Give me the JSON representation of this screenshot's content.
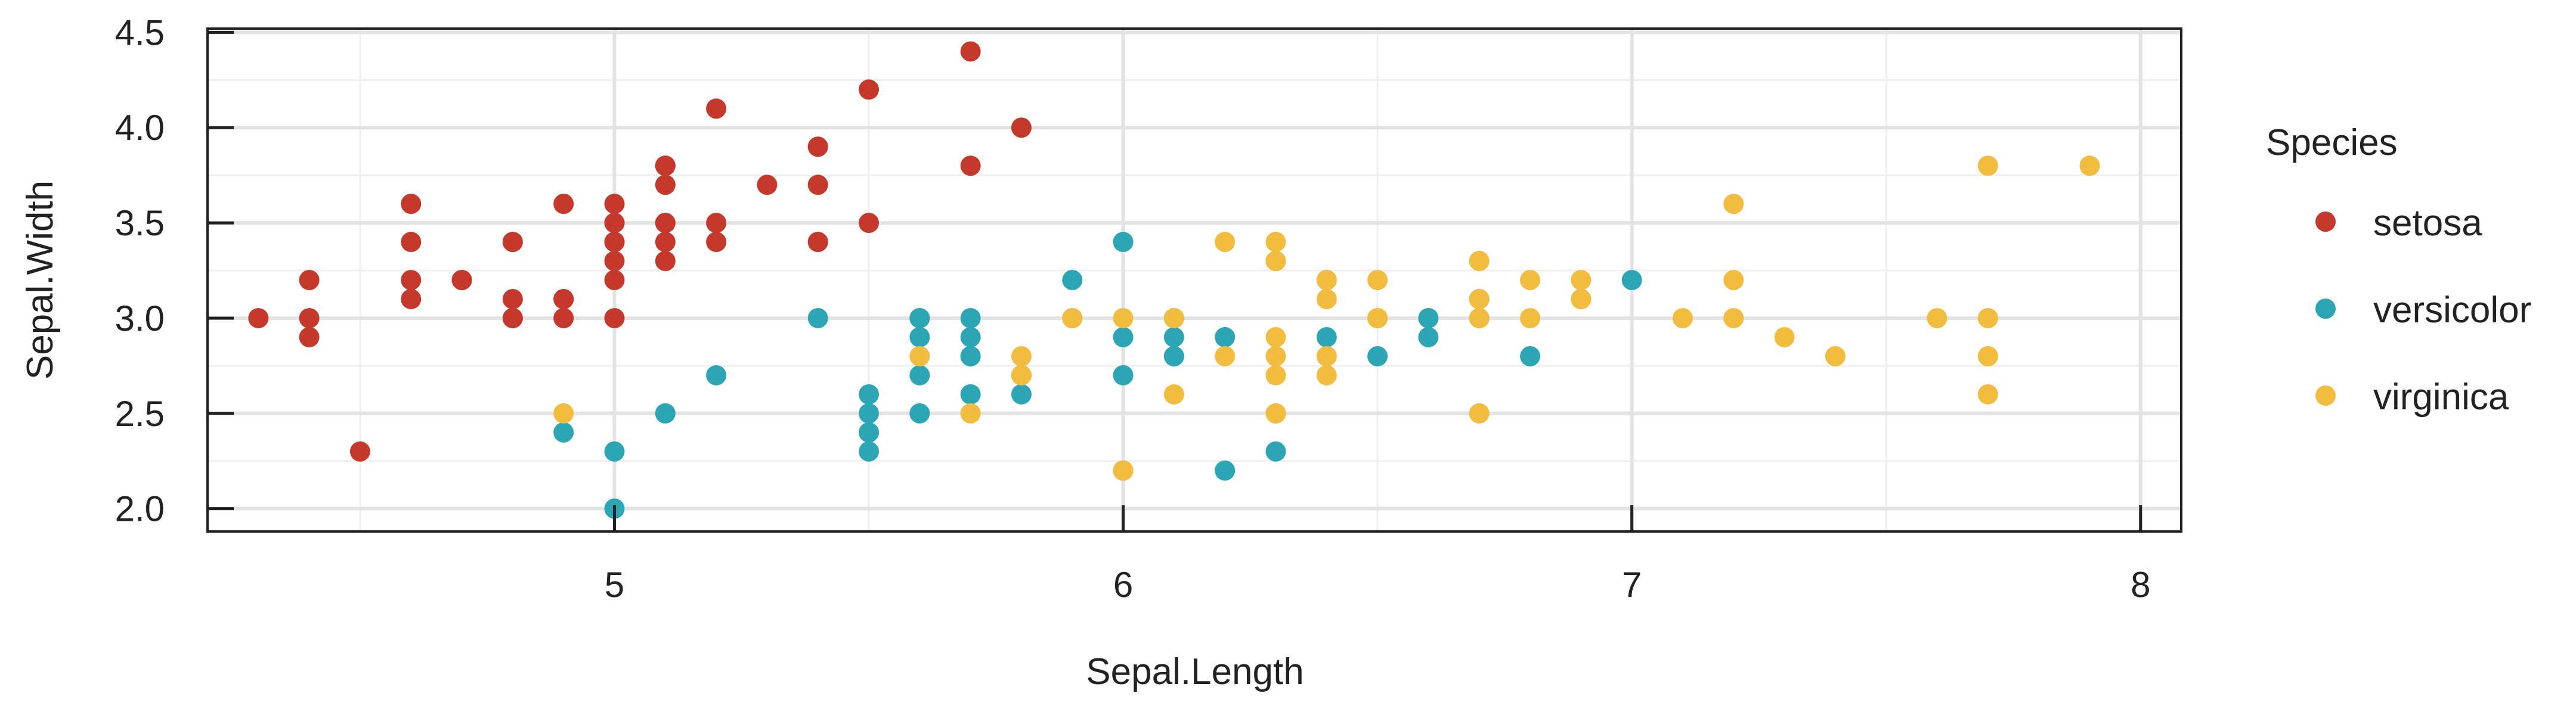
{
  "chart_data": {
    "type": "scatter",
    "xlabel": "Sepal.Length",
    "ylabel": "Sepal.Width",
    "xlim": [
      4.2,
      8.08
    ],
    "ylim": [
      1.88,
      4.52
    ],
    "x_ticks": [
      5,
      6,
      7,
      8
    ],
    "y_ticks": [
      "2.0",
      "2.5",
      "3.0",
      "3.5",
      "4.0",
      "4.5"
    ],
    "grid": true,
    "legend": {
      "title": "Species",
      "position": "right"
    },
    "series": [
      {
        "name": "setosa",
        "color": "#C4392B",
        "points": [
          [
            5.1,
            3.5
          ],
          [
            4.9,
            3.0
          ],
          [
            4.7,
            3.2
          ],
          [
            4.6,
            3.1
          ],
          [
            5.0,
            3.6
          ],
          [
            5.4,
            3.9
          ],
          [
            4.6,
            3.4
          ],
          [
            5.0,
            3.4
          ],
          [
            4.4,
            2.9
          ],
          [
            4.9,
            3.1
          ],
          [
            5.4,
            3.7
          ],
          [
            4.8,
            3.4
          ],
          [
            4.8,
            3.0
          ],
          [
            4.3,
            3.0
          ],
          [
            5.8,
            4.0
          ],
          [
            5.7,
            4.4
          ],
          [
            5.4,
            3.9
          ],
          [
            5.1,
            3.5
          ],
          [
            5.7,
            3.8
          ],
          [
            5.1,
            3.8
          ],
          [
            5.4,
            3.4
          ],
          [
            5.1,
            3.7
          ],
          [
            4.6,
            3.6
          ],
          [
            5.1,
            3.3
          ],
          [
            4.8,
            3.4
          ],
          [
            5.0,
            3.0
          ],
          [
            5.0,
            3.4
          ],
          [
            5.2,
            3.5
          ],
          [
            5.2,
            3.4
          ],
          [
            4.7,
            3.2
          ],
          [
            4.8,
            3.1
          ],
          [
            5.4,
            3.4
          ],
          [
            5.2,
            4.1
          ],
          [
            5.5,
            4.2
          ],
          [
            4.9,
            3.1
          ],
          [
            5.0,
            3.2
          ],
          [
            5.5,
            3.5
          ],
          [
            4.9,
            3.6
          ],
          [
            4.4,
            3.0
          ],
          [
            5.1,
            3.4
          ],
          [
            5.0,
            3.5
          ],
          [
            4.5,
            2.3
          ],
          [
            4.4,
            3.2
          ],
          [
            5.0,
            3.5
          ],
          [
            5.1,
            3.8
          ],
          [
            4.8,
            3.0
          ],
          [
            5.1,
            3.8
          ],
          [
            4.6,
            3.2
          ],
          [
            5.3,
            3.7
          ],
          [
            5.0,
            3.3
          ]
        ]
      },
      {
        "name": "versicolor",
        "color": "#2CA6B5",
        "points": [
          [
            7.0,
            3.2
          ],
          [
            6.4,
            3.2
          ],
          [
            6.9,
            3.1
          ],
          [
            5.5,
            2.3
          ],
          [
            6.5,
            2.8
          ],
          [
            5.7,
            2.8
          ],
          [
            6.3,
            3.3
          ],
          [
            4.9,
            2.4
          ],
          [
            6.6,
            2.9
          ],
          [
            5.2,
            2.7
          ],
          [
            5.0,
            2.0
          ],
          [
            5.9,
            3.0
          ],
          [
            6.0,
            2.2
          ],
          [
            6.1,
            2.9
          ],
          [
            5.6,
            2.9
          ],
          [
            6.7,
            3.1
          ],
          [
            5.6,
            3.0
          ],
          [
            5.8,
            2.7
          ],
          [
            6.2,
            2.2
          ],
          [
            5.6,
            2.5
          ],
          [
            5.9,
            3.2
          ],
          [
            6.1,
            2.8
          ],
          [
            6.3,
            2.5
          ],
          [
            6.1,
            2.8
          ],
          [
            6.4,
            2.9
          ],
          [
            6.6,
            3.0
          ],
          [
            6.8,
            2.8
          ],
          [
            6.7,
            3.0
          ],
          [
            6.0,
            2.9
          ],
          [
            5.7,
            2.6
          ],
          [
            5.5,
            2.4
          ],
          [
            5.5,
            2.4
          ],
          [
            5.8,
            2.7
          ],
          [
            6.0,
            2.7
          ],
          [
            5.4,
            3.0
          ],
          [
            6.0,
            3.4
          ],
          [
            6.7,
            3.1
          ],
          [
            6.3,
            2.3
          ],
          [
            5.6,
            3.0
          ],
          [
            5.5,
            2.5
          ],
          [
            5.5,
            2.6
          ],
          [
            6.1,
            3.0
          ],
          [
            5.8,
            2.6
          ],
          [
            5.0,
            2.3
          ],
          [
            5.6,
            2.7
          ],
          [
            5.7,
            3.0
          ],
          [
            5.7,
            2.9
          ],
          [
            6.2,
            2.9
          ],
          [
            5.1,
            2.5
          ],
          [
            5.7,
            2.8
          ]
        ]
      },
      {
        "name": "virginica",
        "color": "#F2BC3F",
        "points": [
          [
            6.3,
            3.3
          ],
          [
            5.8,
            2.7
          ],
          [
            7.1,
            3.0
          ],
          [
            6.3,
            2.9
          ],
          [
            6.5,
            3.0
          ],
          [
            7.6,
            3.0
          ],
          [
            4.9,
            2.5
          ],
          [
            7.3,
            2.9
          ],
          [
            6.7,
            2.5
          ],
          [
            7.2,
            3.6
          ],
          [
            6.5,
            3.2
          ],
          [
            6.4,
            2.7
          ],
          [
            6.8,
            3.0
          ],
          [
            5.7,
            2.5
          ],
          [
            5.8,
            2.8
          ],
          [
            6.4,
            3.2
          ],
          [
            6.5,
            3.0
          ],
          [
            7.7,
            3.8
          ],
          [
            7.7,
            2.6
          ],
          [
            6.0,
            2.2
          ],
          [
            6.9,
            3.2
          ],
          [
            5.6,
            2.8
          ],
          [
            7.7,
            2.8
          ],
          [
            6.3,
            2.7
          ],
          [
            6.7,
            3.3
          ],
          [
            7.2,
            3.2
          ],
          [
            6.2,
            2.8
          ],
          [
            6.1,
            3.0
          ],
          [
            6.4,
            2.8
          ],
          [
            7.2,
            3.0
          ],
          [
            7.4,
            2.8
          ],
          [
            7.9,
            3.8
          ],
          [
            6.4,
            2.8
          ],
          [
            6.3,
            2.8
          ],
          [
            6.1,
            2.6
          ],
          [
            7.7,
            3.0
          ],
          [
            6.3,
            3.4
          ],
          [
            6.4,
            3.1
          ],
          [
            6.0,
            3.0
          ],
          [
            6.9,
            3.1
          ],
          [
            6.7,
            3.1
          ],
          [
            6.9,
            3.1
          ],
          [
            5.8,
            2.7
          ],
          [
            6.8,
            3.2
          ],
          [
            6.7,
            3.3
          ],
          [
            6.7,
            3.0
          ],
          [
            6.3,
            2.5
          ],
          [
            6.5,
            3.0
          ],
          [
            6.2,
            3.4
          ],
          [
            5.9,
            3.0
          ]
        ]
      }
    ]
  }
}
